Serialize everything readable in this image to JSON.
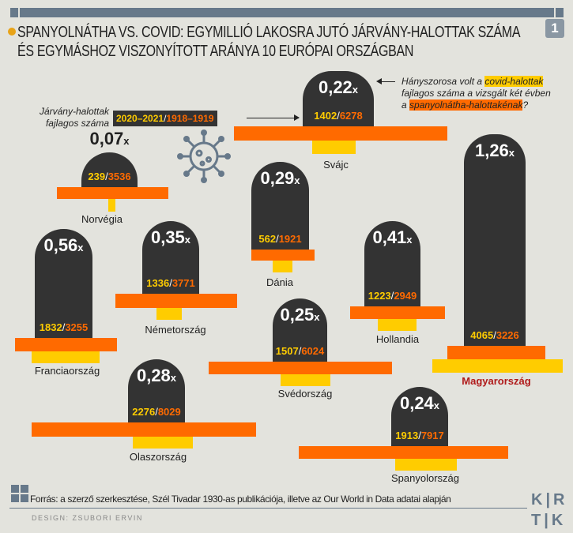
{
  "header": {
    "page_number": "1",
    "title": "SPANYOLNÁTHA VS. COVID: EGYMILLIÓ LAKOSRA JUTÓ JÁRVÁNY-HALOTTAK SZÁMA ÉS EGYMÁSHOZ VISZONYÍTOTT ARÁNYA 10 EURÓPAI ORSZÁGBAN"
  },
  "legend": {
    "label_line1": "Járvány-halottak",
    "label_line2": "fajlagos száma",
    "covid_period": "2020–2021",
    "flu_period": "1918–1919",
    "sep": "/"
  },
  "note": {
    "pre": "Hányszorosa volt a ",
    "covid": "covid-halottak",
    "mid": "fajlagos száma a vizsgált két évben",
    "a": "a ",
    "flu": "spanyolnátha-halottakénak",
    "q": "?"
  },
  "colors": {
    "covid": "#ffcc00",
    "flu": "#ff6a00",
    "stone": "#333333",
    "highlight": "#b01a1a"
  },
  "countries": [
    {
      "name": "Svájc",
      "ratio": "0,22",
      "covid": "1402",
      "flu": "6278"
    },
    {
      "name": "Norvégia",
      "ratio": "0,07",
      "covid": "239",
      "flu": "3536"
    },
    {
      "name": "Dánia",
      "ratio": "0,29",
      "covid": "562",
      "flu": "1921"
    },
    {
      "name": "Magyarország",
      "ratio": "1,26",
      "covid": "4065",
      "flu": "3226"
    },
    {
      "name": "Franciaország",
      "ratio": "0,56",
      "covid": "1832",
      "flu": "3255"
    },
    {
      "name": "Németország",
      "ratio": "0,35",
      "covid": "1336",
      "flu": "3771"
    },
    {
      "name": "Hollandia",
      "ratio": "0,41",
      "covid": "1223",
      "flu": "2949"
    },
    {
      "name": "Svédország",
      "ratio": "0,25",
      "covid": "1507",
      "flu": "6024"
    },
    {
      "name": "Olaszország",
      "ratio": "0,28",
      "covid": "2276",
      "flu": "8029"
    },
    {
      "name": "Spanyolország",
      "ratio": "0,24",
      "covid": "1913",
      "flu": "7917"
    }
  ],
  "x_suffix": "x",
  "footer": {
    "source": "Forrás: a szerző szerkesztése, Szél Tivadar 1930-as publikációja, illetve az Our World in Data adatai alapján",
    "design": "DESIGN: ZSUBORI ERVIN",
    "logo": "KRTK"
  }
}
